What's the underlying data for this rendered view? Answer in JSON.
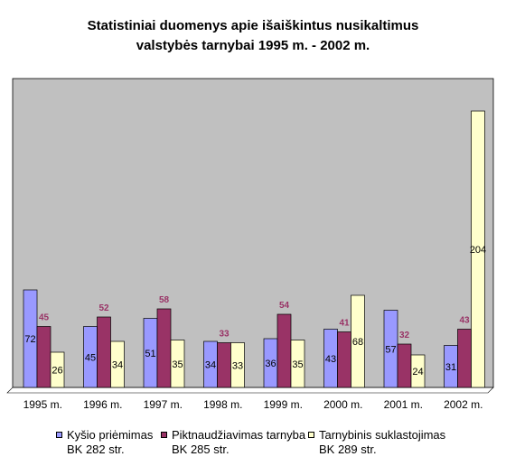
{
  "chart_data": {
    "type": "bar",
    "title_lines": [
      "Statistiniai duomenys apie išaiškintus nusikaltimus",
      "valstybės tarnybai 1995 m. - 2002 m."
    ],
    "categories": [
      "1995 m.",
      "1996 m.",
      "1997 m.",
      "1998 m.",
      "1999 m.",
      "2000 m.",
      "2001 m.",
      "2002 m."
    ],
    "series": [
      {
        "name": "Kyšio priėmimas BK 282 str.",
        "legend_lines": [
          "Kyšio priėmimas",
          "BK 282 str."
        ],
        "color": "#9999ff",
        "values": [
          72,
          45,
          51,
          34,
          36,
          43,
          57,
          31
        ]
      },
      {
        "name": "Piktnaudžiavimas tarnyba BK 285 str.",
        "legend_lines": [
          "Piktnaudžiavimas tarnyba",
          "BK 285 str."
        ],
        "color": "#993366",
        "values": [
          45,
          52,
          58,
          33,
          54,
          41,
          32,
          43
        ]
      },
      {
        "name": "Tarnybinis suklastojimas BK 289 str.",
        "legend_lines": [
          "Tarnybinis suklastojimas",
          "BK 289 str."
        ],
        "color": "#ffffcc",
        "values": [
          26,
          34,
          35,
          33,
          35,
          68,
          24,
          204
        ]
      }
    ],
    "data_labels": [
      [
        "72",
        "45",
        "51",
        "34",
        "36",
        "43",
        "57",
        "31"
      ],
      [
        "45",
        "52",
        "58",
        "33",
        "54",
        "41",
        "32",
        "43"
      ],
      [
        "26",
        "34",
        "35",
        "33",
        "35",
        "68",
        "24",
        "204"
      ]
    ],
    "label_colors": [
      "#000000",
      "#993366",
      "#000000"
    ],
    "ylim": [
      0,
      228
    ],
    "plot_background": "#c0c0c0",
    "grid": false,
    "legend_position": "bottom"
  }
}
